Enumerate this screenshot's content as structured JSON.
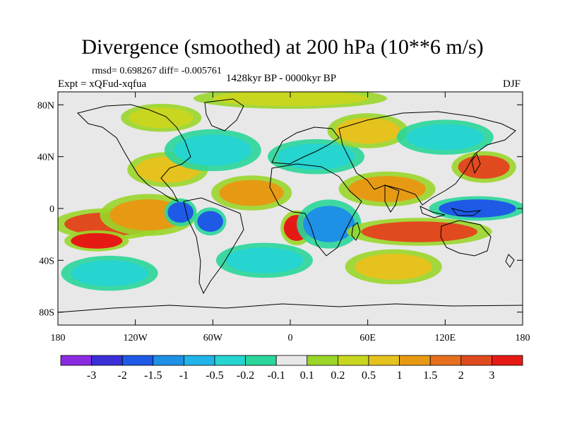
{
  "title": "Divergence (smoothed) at 200 hPa (10**6 m/s)",
  "stats": "rmsd= 0.698267 diff= -0.005761",
  "experiment": "Expt = xQFud-xqfua",
  "period": "1428kyr BP - 0000kyr BP",
  "season": "DJF",
  "map": {
    "lat_ticks": [
      {
        "label": "80N",
        "lat": 80
      },
      {
        "label": "40N",
        "lat": 40
      },
      {
        "label": "0",
        "lat": 0
      },
      {
        "label": "40S",
        "lat": -40
      },
      {
        "label": "80S",
        "lat": -80
      }
    ],
    "lon_ticks": [
      {
        "label": "180",
        "lon": -180
      },
      {
        "label": "120W",
        "lon": -120
      },
      {
        "label": "60W",
        "lon": -60
      },
      {
        "label": "0",
        "lon": 0
      },
      {
        "label": "60E",
        "lon": 60
      },
      {
        "label": "120E",
        "lon": 120
      },
      {
        "label": "180",
        "lon": 180
      }
    ],
    "lat_range": [
      -90,
      90
    ],
    "lon_range": [
      -180,
      180
    ]
  },
  "colorbar": {
    "colors": [
      "#8a2be2",
      "#3a2fd6",
      "#1e5ae6",
      "#1e90e6",
      "#21b4e8",
      "#26d4d0",
      "#2ad69a",
      "#e8e8e8",
      "#9ad62a",
      "#c8d620",
      "#e6c21e",
      "#e69a14",
      "#e6701e",
      "#e04a1e",
      "#e61a14"
    ],
    "labels": [
      "-3",
      "-2",
      "-1.5",
      "-1",
      "-0.5",
      "-0.2",
      "-0.1",
      "0.1",
      "0.2",
      "0.5",
      "1",
      "1.5",
      "2",
      "3"
    ]
  },
  "field_blobs": [
    {
      "lon": -140,
      "lat": -12,
      "rx": 35,
      "ry": 9,
      "v": 2
    },
    {
      "lon": -150,
      "lat": -25,
      "rx": 20,
      "ry": 6,
      "v": 3
    },
    {
      "lon": -110,
      "lat": -5,
      "rx": 30,
      "ry": 12,
      "v": 1
    },
    {
      "lon": -85,
      "lat": -3,
      "rx": 10,
      "ry": 8,
      "v": -2
    },
    {
      "lon": -62,
      "lat": -10,
      "rx": 10,
      "ry": 8,
      "v": -2
    },
    {
      "lon": -30,
      "lat": 12,
      "rx": 25,
      "ry": 10,
      "v": 1
    },
    {
      "lon": 5,
      "lat": -15,
      "rx": 10,
      "ry": 10,
      "v": 3
    },
    {
      "lon": 30,
      "lat": -12,
      "rx": 20,
      "ry": 14,
      "v": -1.5
    },
    {
      "lon": 75,
      "lat": 15,
      "rx": 30,
      "ry": 10,
      "v": 1
    },
    {
      "lon": 100,
      "lat": -18,
      "rx": 45,
      "ry": 8,
      "v": 2
    },
    {
      "lon": 145,
      "lat": 0,
      "rx": 30,
      "ry": 7,
      "v": -2
    },
    {
      "lon": 150,
      "lat": 32,
      "rx": 20,
      "ry": 9,
      "v": 2
    },
    {
      "lon": 20,
      "lat": 40,
      "rx": 30,
      "ry": 10,
      "v": -0.5
    },
    {
      "lon": -95,
      "lat": 30,
      "rx": 25,
      "ry": 10,
      "v": 0.5
    },
    {
      "lon": -60,
      "lat": 45,
      "rx": 30,
      "ry": 12,
      "v": -0.5
    },
    {
      "lon": 60,
      "lat": 60,
      "rx": 25,
      "ry": 10,
      "v": 0.5
    },
    {
      "lon": 120,
      "lat": 55,
      "rx": 30,
      "ry": 10,
      "v": -0.5
    },
    {
      "lon": -100,
      "lat": 70,
      "rx": 25,
      "ry": 8,
      "v": 0.2
    },
    {
      "lon": -20,
      "lat": -40,
      "rx": 30,
      "ry": 10,
      "v": -0.5
    },
    {
      "lon": 80,
      "lat": -45,
      "rx": 30,
      "ry": 10,
      "v": 0.5
    },
    {
      "lon": -140,
      "lat": -50,
      "rx": 30,
      "ry": 10,
      "v": -0.5
    },
    {
      "lon": 0,
      "lat": 85,
      "rx": 60,
      "ry": 6,
      "v": 0.2
    }
  ]
}
